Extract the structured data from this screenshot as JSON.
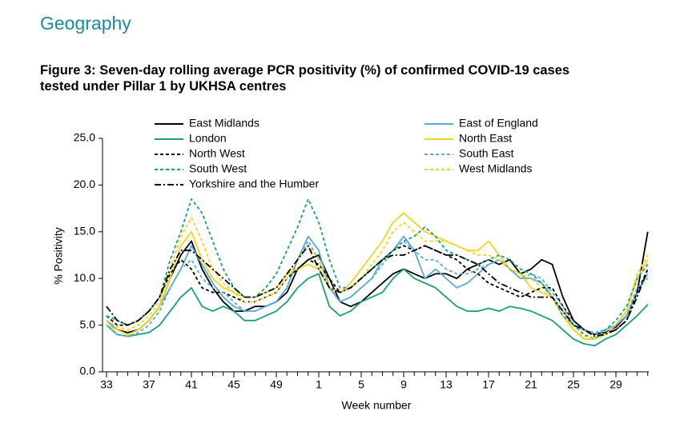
{
  "heading": "Geography",
  "chart_data": {
    "type": "line",
    "title": "Figure 3: Seven-day rolling average PCR positivity (%) of confirmed COVID-19 cases tested under Pillar 1 by UKHSA centres",
    "x_label": "Week number",
    "y_label": "% Positivity",
    "categories": [
      "33",
      null,
      null,
      null,
      "37",
      null,
      null,
      null,
      "41",
      null,
      null,
      null,
      "45",
      null,
      null,
      null,
      "49",
      null,
      null,
      null,
      "1",
      null,
      null,
      null,
      "5",
      null,
      null,
      null,
      "9",
      null,
      null,
      null,
      "13",
      null,
      null,
      null,
      "17",
      null,
      null,
      null,
      "21",
      null,
      null,
      null,
      "25",
      null,
      null,
      null,
      "29",
      null,
      null,
      null
    ],
    "ylim": [
      0,
      25
    ],
    "yticks": [
      {
        "value": 0,
        "label": "0.0"
      },
      {
        "value": 5,
        "label": "5.0"
      },
      {
        "value": 10,
        "label": "10.0"
      },
      {
        "value": 15,
        "label": "15.0"
      },
      {
        "value": 20,
        "label": "20.0"
      },
      {
        "value": 25,
        "label": "25.0"
      }
    ],
    "grid": false,
    "series": [
      {
        "name": "East Midlands",
        "color": "#000000",
        "dash": "solid",
        "values": [
          5.5,
          4.5,
          4.2,
          4.5,
          5.5,
          7,
          10,
          12.5,
          14,
          11,
          9,
          7.5,
          6.5,
          6.5,
          7,
          7,
          7.5,
          8.5,
          11,
          12,
          12.5,
          10,
          7.5,
          7,
          7.5,
          8.5,
          9.5,
          10.5,
          11,
          10.5,
          10,
          10.5,
          10.5,
          10,
          11,
          11.5,
          12,
          11.5,
          12,
          10.5,
          11,
          12,
          11.5,
          8,
          5.5,
          4.5,
          4,
          4.2,
          4.8,
          6,
          8.5,
          15
        ]
      },
      {
        "name": "East of England",
        "color": "#5aabd6",
        "dash": "solid",
        "values": [
          5.5,
          4.5,
          4,
          4.5,
          5.5,
          7,
          9,
          11,
          13.5,
          11.5,
          9.5,
          8,
          7,
          6.5,
          6.5,
          7,
          7.5,
          9,
          12,
          14.5,
          13,
          9,
          7.5,
          8,
          9,
          10,
          12,
          13,
          14.5,
          13,
          10,
          11,
          10,
          9,
          9.5,
          10.5,
          11.5,
          12,
          11,
          10,
          10,
          9.5,
          8,
          6.5,
          5,
          4.5,
          4,
          4.5,
          5,
          6,
          8.5,
          10.5
        ]
      },
      {
        "name": "London",
        "color": "#16a07c",
        "dash": "solid",
        "values": [
          5,
          4,
          3.8,
          4,
          4.2,
          5,
          6.5,
          8,
          9,
          7,
          6.5,
          7,
          6.5,
          5.5,
          5.5,
          6,
          6.5,
          7.5,
          9,
          10,
          10.5,
          7,
          6,
          6.5,
          7.5,
          8,
          8.5,
          10,
          11,
          10,
          9.5,
          9,
          8,
          7,
          6.5,
          6.5,
          6.8,
          6.5,
          7,
          6.8,
          6.5,
          6,
          5.5,
          4.5,
          3.5,
          3,
          2.8,
          3.5,
          4,
          5,
          6,
          7.2
        ]
      },
      {
        "name": "North East",
        "color": "#f2d41c",
        "dash": "solid",
        "values": [
          5,
          4.5,
          4,
          4.5,
          5.5,
          7,
          10,
          13.5,
          15,
          12,
          10,
          9,
          8.5,
          8,
          8,
          8.5,
          9,
          10.5,
          11,
          11.5,
          11,
          9,
          8.5,
          9.5,
          11,
          12.5,
          14,
          16,
          17,
          16,
          15,
          14.5,
          14,
          13.5,
          13,
          13,
          14,
          12.5,
          11,
          10.5,
          9,
          8.5,
          8,
          6,
          4.5,
          3.5,
          3.5,
          4,
          5,
          6.5,
          10,
          12
        ]
      },
      {
        "name": "North West",
        "color": "#000000",
        "dash": "dash",
        "values": [
          6,
          5,
          5,
          5.5,
          6.5,
          8,
          10.5,
          12,
          11,
          9,
          8.5,
          8.5,
          8,
          7.5,
          7.5,
          8,
          8.5,
          10,
          11,
          12,
          11.5,
          10,
          8.5,
          9,
          10,
          11,
          12,
          13,
          13.5,
          13,
          13.5,
          13,
          12.5,
          12,
          11,
          10.5,
          9.5,
          9,
          8.5,
          8,
          8.5,
          9,
          9,
          7,
          5.5,
          4.5,
          4,
          4.2,
          4.5,
          5.5,
          8.5,
          11
        ]
      },
      {
        "name": "South East",
        "color": "#5aabd6",
        "dash": "dash",
        "values": [
          5,
          4,
          3.8,
          4.2,
          5,
          6.5,
          9,
          11,
          12,
          10,
          9,
          8.5,
          7.5,
          6.5,
          6.5,
          7,
          7.5,
          9,
          12,
          14,
          12,
          9,
          7.5,
          8,
          9,
          10,
          11.5,
          13,
          14,
          13,
          12,
          12,
          11,
          10.5,
          10.5,
          11,
          11.5,
          12,
          11,
          10,
          10.5,
          10,
          8.5,
          7,
          5,
          4.5,
          4.2,
          4.5,
          5,
          6,
          9,
          10
        ]
      },
      {
        "name": "South West",
        "color": "#16a07c",
        "dash": "dash",
        "values": [
          6,
          5.5,
          5,
          5.5,
          6.5,
          8,
          12,
          15,
          18.5,
          17,
          14,
          11,
          9,
          8,
          8,
          9,
          10.5,
          13,
          15.5,
          18.5,
          16,
          12,
          9,
          9,
          10,
          11,
          12,
          13,
          14,
          14.5,
          15.5,
          14.5,
          13,
          12.5,
          12,
          11.5,
          12,
          12.5,
          12,
          11,
          10.5,
          9.5,
          8,
          6,
          5,
          4,
          3.5,
          4.5,
          5.5,
          7,
          10,
          11.5
        ]
      },
      {
        "name": "West Midlands",
        "color": "#f2d41c",
        "dash": "dash",
        "values": [
          5.5,
          4.8,
          4.5,
          5,
          6,
          7.5,
          11,
          14.5,
          16.5,
          14,
          11,
          9.5,
          8.5,
          7.5,
          7.5,
          8,
          8.5,
          10,
          12,
          13.5,
          12,
          9,
          8.5,
          9,
          10,
          11.5,
          13,
          15,
          16,
          15,
          14,
          14,
          14,
          13.5,
          13,
          12.5,
          12.5,
          12,
          11,
          10.5,
          10,
          9,
          8,
          6.5,
          4.5,
          3.8,
          3.5,
          4,
          5,
          6.5,
          10.5,
          12.5
        ]
      },
      {
        "name": "Yorkshire and the Humber",
        "color": "#000000",
        "dash": "dashdot",
        "values": [
          7,
          5.5,
          5,
          5.5,
          6.5,
          8,
          11,
          13,
          13,
          12,
          11,
          10,
          9,
          8,
          8,
          8.5,
          9,
          10.5,
          12,
          13.5,
          11,
          9,
          8.5,
          9,
          10,
          11,
          12,
          12.5,
          12.5,
          13,
          13.5,
          13,
          12.5,
          12.5,
          12,
          11.5,
          10.5,
          9.5,
          9,
          8.5,
          8,
          8,
          8,
          6.5,
          5,
          4.5,
          3.8,
          4,
          4.5,
          5.5,
          8,
          11
        ]
      }
    ]
  }
}
